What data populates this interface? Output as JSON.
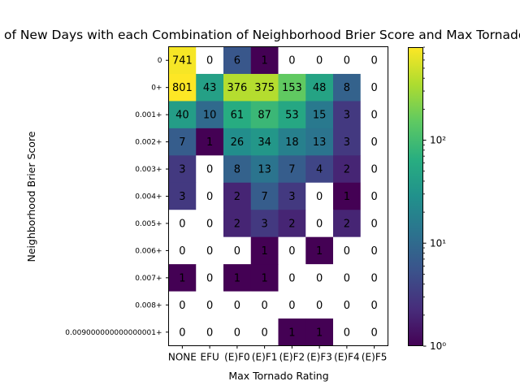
{
  "chart_data": {
    "type": "heatmap",
    "title": "Number of New Days with each Combination of Neighborhood Brier Score and Max Tornado Rating",
    "xlabel": "Max Tornado Rating",
    "ylabel": "Neighborhood Brier Score",
    "x_categories": [
      "NONE",
      "EFU",
      "(E)F0",
      "(E)F1",
      "(E)F2",
      "(E)F3",
      "(E)F4",
      "(E)F5"
    ],
    "y_categories": [
      "0",
      "0+",
      "0.001+",
      "0.002+",
      "0.003+",
      "0.004+",
      "0.005+",
      "0.006+",
      "0.007+",
      "0.008+",
      "0.009000000000000001+"
    ],
    "values": [
      [
        741,
        0,
        6,
        1,
        0,
        0,
        0,
        0
      ],
      [
        801,
        43,
        376,
        375,
        153,
        48,
        8,
        0
      ],
      [
        40,
        10,
        61,
        87,
        53,
        15,
        3,
        0
      ],
      [
        7,
        1,
        26,
        34,
        18,
        13,
        3,
        0
      ],
      [
        3,
        0,
        8,
        13,
        7,
        4,
        2,
        0
      ],
      [
        3,
        0,
        2,
        7,
        3,
        0,
        1,
        0
      ],
      [
        0,
        0,
        2,
        3,
        2,
        0,
        2,
        0
      ],
      [
        0,
        0,
        0,
        1,
        0,
        1,
        0,
        0
      ],
      [
        1,
        0,
        1,
        1,
        0,
        0,
        0,
        0
      ],
      [
        0,
        0,
        0,
        0,
        0,
        0,
        0,
        0
      ],
      [
        0,
        0,
        0,
        0,
        1,
        1,
        0,
        0
      ]
    ],
    "colormap": "viridis",
    "colorbar": {
      "scale": "log",
      "range": [
        1,
        801
      ],
      "ticks": [
        {
          "value": 1,
          "label": "10⁰"
        },
        {
          "value": 10,
          "label": "10¹"
        },
        {
          "value": 100,
          "label": "10²"
        }
      ]
    },
    "zero_cells_color": "#ffffff"
  }
}
